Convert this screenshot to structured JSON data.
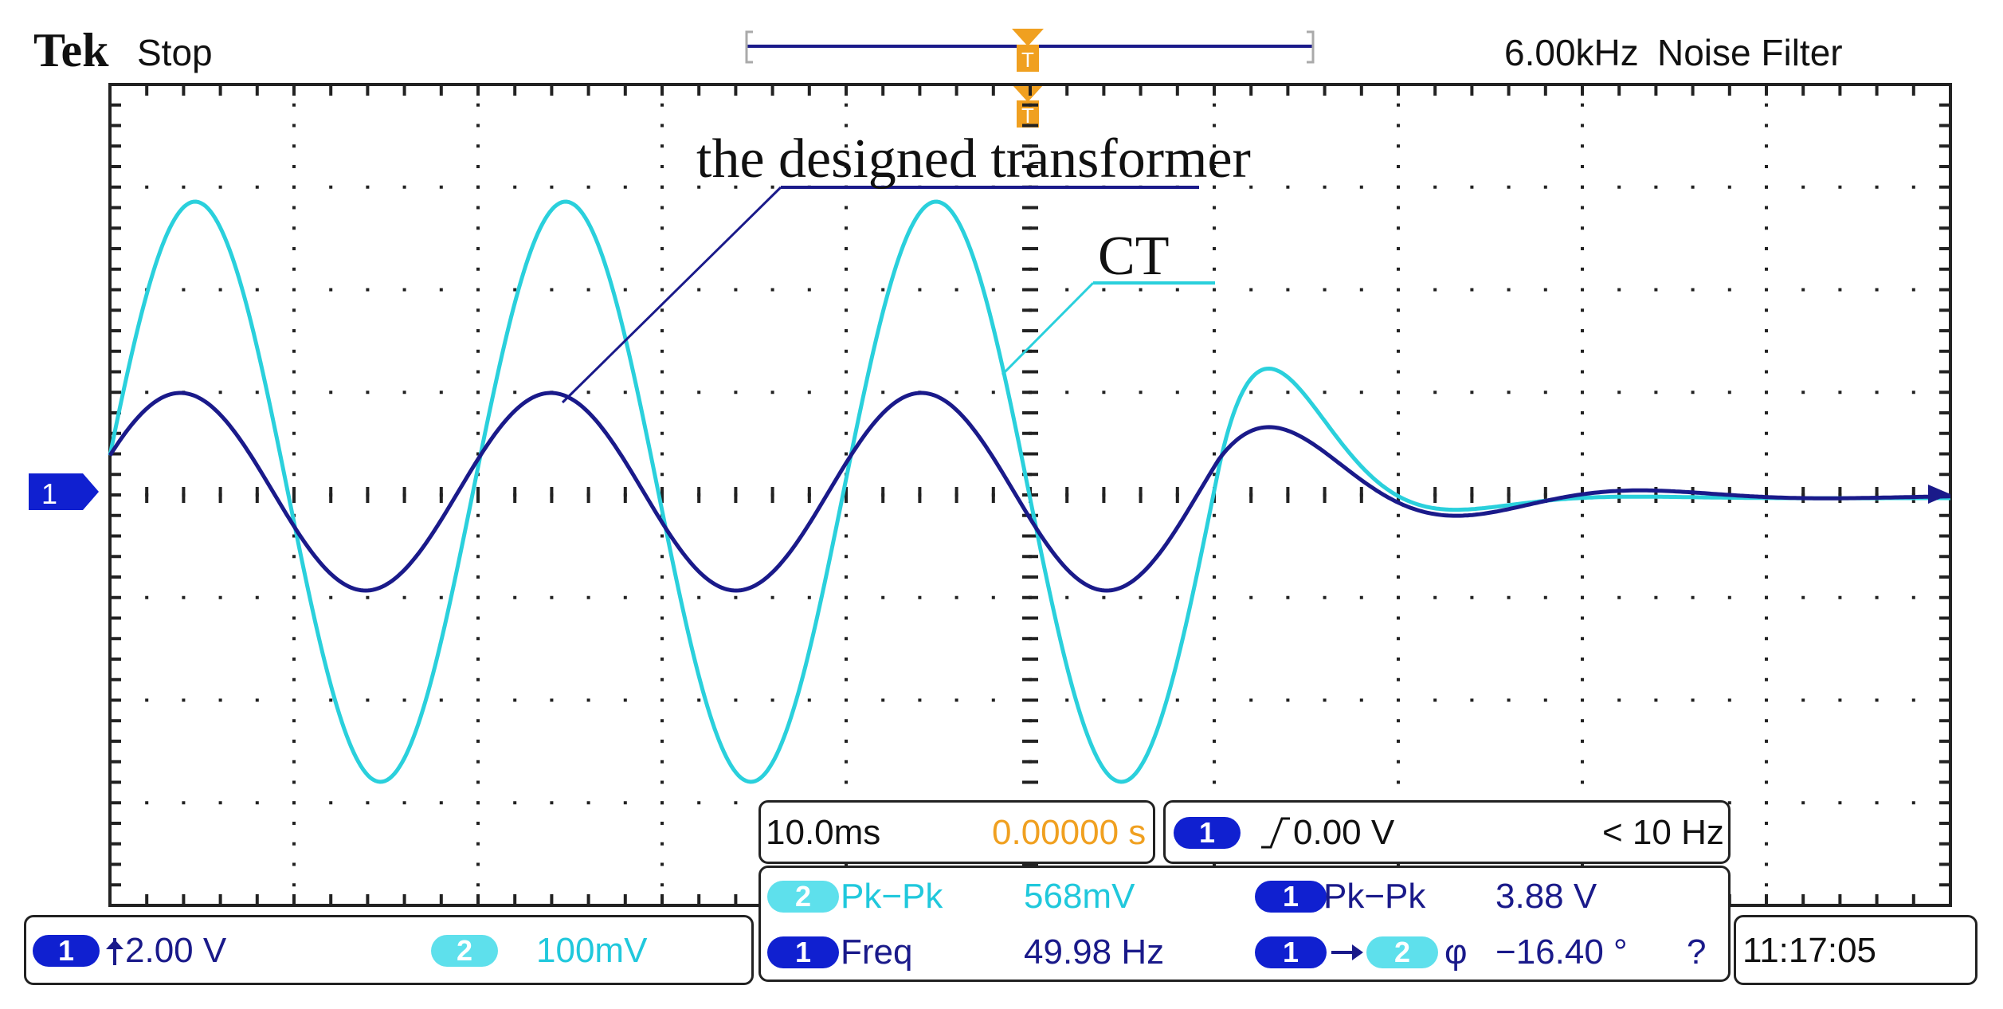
{
  "header": {
    "brand": "Tek",
    "state": "Stop",
    "sample_rate": "6.00kHz",
    "filter": "Noise Filter"
  },
  "annotations": {
    "designed_label": "the designed transformer",
    "ct_label": "CT"
  },
  "markers": {
    "trigger_marker": "T",
    "ch1_ground": "1"
  },
  "colors": {
    "ch1": "#1a1a8a",
    "ch2": "#2ad0dc",
    "grid": "#222222",
    "trigger": "#f0a020",
    "pill_ch1": "#1020d0",
    "pill_ch2": "#5ee0ec"
  },
  "timebase": {
    "scale": "10.0ms",
    "position": "0.00000 s"
  },
  "trigger": {
    "channel": "1",
    "slope_icon": "rising-edge-icon",
    "level": "0.00 V",
    "freq": "< 10 Hz"
  },
  "channels": {
    "ch1_id": "1",
    "ch1_scale": "2.00 V",
    "ch2_id": "2",
    "ch2_scale": "100mV"
  },
  "measurements": {
    "m1": {
      "channel": "2",
      "name": "Pk−Pk",
      "value": "568mV"
    },
    "m2": {
      "channel": "1",
      "name": "Pk−Pk",
      "value": "3.88 V"
    },
    "m3": {
      "channel": "1",
      "name": "Freq",
      "value": "49.98 Hz"
    },
    "m4": {
      "from": "1",
      "to": "2",
      "name": "φ",
      "value": "−16.40 °",
      "flag": "?"
    }
  },
  "clock": "11:17:05"
}
